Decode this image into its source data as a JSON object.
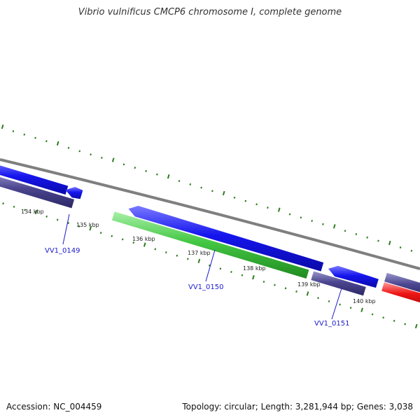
{
  "title": "Vibrio vulnificus CMCP6 chromosome I, complete genome",
  "footer": {
    "accession_text": "Accession: NC_004459",
    "summary_text": "Topology: circular; Length: 3,281,944 bp; Genes: 3,038"
  },
  "colors": {
    "backbone": "#7f7f7f",
    "tick": "#2e7d1e",
    "gene_blue": "#1010e8",
    "gene_navy": "#4a4590",
    "gene_green": "#3dbf3d",
    "gene_red": "#e81010",
    "label": "#1a1acc"
  },
  "scale": {
    "unit": "kbp",
    "labels": [
      "134 kbp",
      "135 kbp",
      "136 kbp",
      "137 kbp",
      "138 kbp",
      "139 kbp",
      "140 kbp"
    ]
  },
  "genes": [
    {
      "label": "VV1_0149"
    },
    {
      "label": "VV1_0150"
    },
    {
      "label": "VV1_0151"
    }
  ]
}
